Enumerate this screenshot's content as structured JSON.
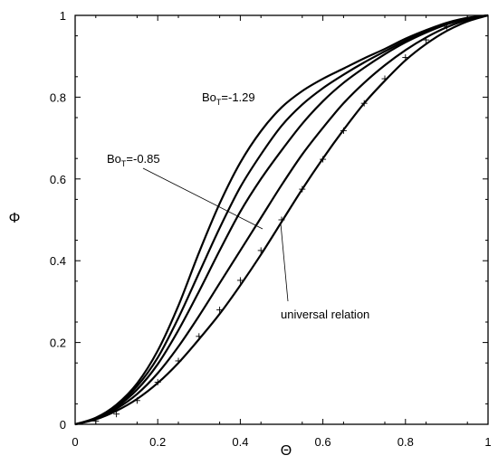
{
  "chart_data": {
    "type": "line",
    "xlabel": "Θ",
    "ylabel": "Φ",
    "xlim": [
      0,
      1
    ],
    "ylim": [
      0,
      1
    ],
    "xticks": [
      "0",
      "0.2",
      "0.4",
      "0.6",
      "0.8",
      "1"
    ],
    "yticks": [
      "0",
      "0.2",
      "0.4",
      "0.6",
      "0.8",
      "1"
    ],
    "grid": false,
    "annotations": {
      "bo_high_main": "Bo",
      "bo_high_sub": "T",
      "bo_high_value": "=-1.29",
      "bo_low_main": "Bo",
      "bo_low_sub": "T",
      "bo_low_value": "=-0.85",
      "universal": "universal relation"
    },
    "series": [
      {
        "values": [
          [
            0,
            0
          ],
          [
            0.05,
            0.016
          ],
          [
            0.1,
            0.048
          ],
          [
            0.15,
            0.1
          ],
          [
            0.2,
            0.18
          ],
          [
            0.25,
            0.29
          ],
          [
            0.3,
            0.42
          ],
          [
            0.35,
            0.54
          ],
          [
            0.4,
            0.64
          ],
          [
            0.45,
            0.717
          ],
          [
            0.5,
            0.775
          ],
          [
            0.55,
            0.815
          ],
          [
            0.6,
            0.845
          ],
          [
            0.65,
            0.87
          ],
          [
            0.7,
            0.895
          ],
          [
            0.75,
            0.918
          ],
          [
            0.8,
            0.943
          ],
          [
            0.85,
            0.964
          ],
          [
            0.9,
            0.982
          ],
          [
            0.95,
            0.994
          ],
          [
            1,
            1
          ]
        ]
      },
      {
        "values": [
          [
            0,
            0
          ],
          [
            0.05,
            0.015
          ],
          [
            0.1,
            0.045
          ],
          [
            0.15,
            0.093
          ],
          [
            0.2,
            0.163
          ],
          [
            0.25,
            0.26
          ],
          [
            0.3,
            0.37
          ],
          [
            0.35,
            0.48
          ],
          [
            0.4,
            0.58
          ],
          [
            0.45,
            0.66
          ],
          [
            0.5,
            0.73
          ],
          [
            0.55,
            0.782
          ],
          [
            0.6,
            0.822
          ],
          [
            0.65,
            0.855
          ],
          [
            0.7,
            0.885
          ],
          [
            0.75,
            0.912
          ],
          [
            0.8,
            0.938
          ],
          [
            0.85,
            0.961
          ],
          [
            0.9,
            0.98
          ],
          [
            0.95,
            0.993
          ],
          [
            1,
            1
          ]
        ]
      },
      {
        "values": [
          [
            0,
            0
          ],
          [
            0.05,
            0.014
          ],
          [
            0.1,
            0.042
          ],
          [
            0.15,
            0.085
          ],
          [
            0.2,
            0.147
          ],
          [
            0.25,
            0.23
          ],
          [
            0.3,
            0.325
          ],
          [
            0.35,
            0.425
          ],
          [
            0.4,
            0.52
          ],
          [
            0.45,
            0.6
          ],
          [
            0.5,
            0.67
          ],
          [
            0.55,
            0.735
          ],
          [
            0.6,
            0.79
          ],
          [
            0.65,
            0.835
          ],
          [
            0.7,
            0.872
          ],
          [
            0.75,
            0.905
          ],
          [
            0.8,
            0.934
          ],
          [
            0.85,
            0.958
          ],
          [
            0.9,
            0.978
          ],
          [
            0.95,
            0.992
          ],
          [
            1,
            1
          ]
        ]
      },
      {
        "values": [
          [
            0,
            0
          ],
          [
            0.05,
            0.013
          ],
          [
            0.1,
            0.038
          ],
          [
            0.15,
            0.074
          ],
          [
            0.2,
            0.125
          ],
          [
            0.25,
            0.19
          ],
          [
            0.3,
            0.265
          ],
          [
            0.35,
            0.345
          ],
          [
            0.4,
            0.425
          ],
          [
            0.45,
            0.505
          ],
          [
            0.5,
            0.585
          ],
          [
            0.55,
            0.66
          ],
          [
            0.6,
            0.725
          ],
          [
            0.65,
            0.785
          ],
          [
            0.7,
            0.835
          ],
          [
            0.75,
            0.878
          ],
          [
            0.8,
            0.915
          ],
          [
            0.85,
            0.946
          ],
          [
            0.9,
            0.971
          ],
          [
            0.95,
            0.989
          ],
          [
            1,
            1
          ]
        ]
      },
      {
        "values": [
          [
            0,
            0
          ],
          [
            0.05,
            0.012
          ],
          [
            0.1,
            0.033
          ],
          [
            0.15,
            0.062
          ],
          [
            0.2,
            0.101
          ],
          [
            0.25,
            0.15
          ],
          [
            0.3,
            0.208
          ],
          [
            0.35,
            0.27
          ],
          [
            0.4,
            0.34
          ],
          [
            0.45,
            0.415
          ],
          [
            0.5,
            0.495
          ],
          [
            0.55,
            0.575
          ],
          [
            0.6,
            0.65
          ],
          [
            0.65,
            0.72
          ],
          [
            0.7,
            0.785
          ],
          [
            0.75,
            0.84
          ],
          [
            0.8,
            0.89
          ],
          [
            0.85,
            0.93
          ],
          [
            0.9,
            0.962
          ],
          [
            0.95,
            0.985
          ],
          [
            1,
            1
          ]
        ]
      }
    ],
    "markers": {
      "symbol": "+",
      "x": [
        0.05,
        0.1,
        0.15,
        0.2,
        0.25,
        0.3,
        0.35,
        0.4,
        0.45,
        0.5,
        0.55,
        0.6,
        0.65,
        0.7,
        0.75,
        0.8,
        0.85,
        0.9,
        0.95
      ],
      "y": [
        0.008,
        0.025,
        0.058,
        0.103,
        0.155,
        0.215,
        0.28,
        0.352,
        0.425,
        0.5,
        0.575,
        0.648,
        0.718,
        0.785,
        0.845,
        0.897,
        0.94,
        0.973,
        0.993
      ]
    }
  }
}
